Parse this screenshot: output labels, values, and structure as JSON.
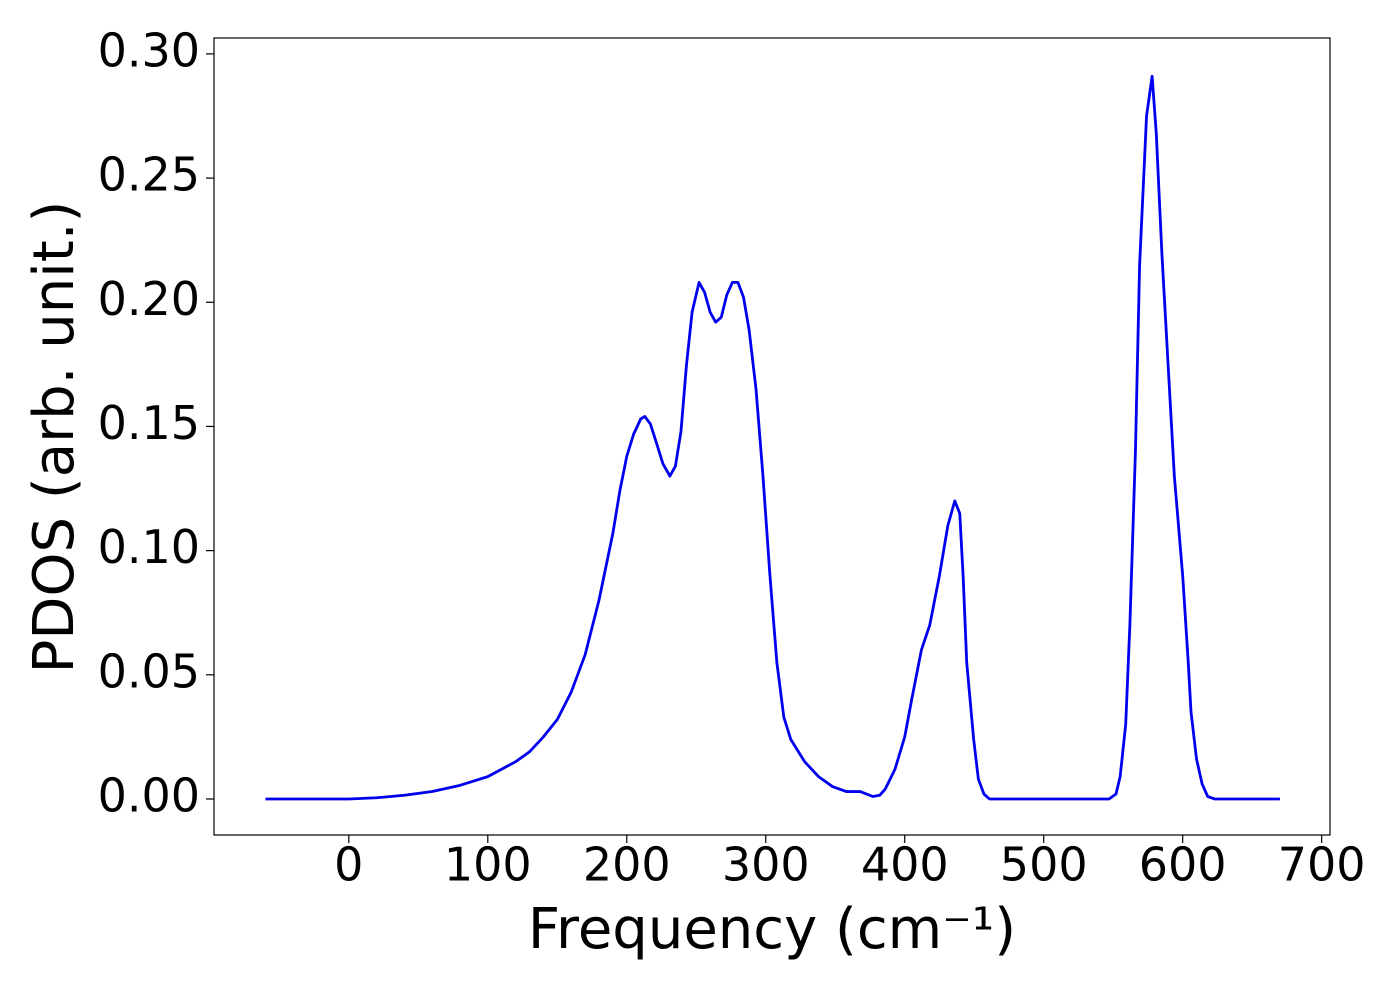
{
  "chart_data": {
    "type": "line",
    "xlabel": "Frequency (cm⁻¹)",
    "ylabel": "PDOS (arb. unit.)",
    "x": [
      -60,
      -40,
      -20,
      0,
      20,
      40,
      60,
      80,
      100,
      120,
      130,
      140,
      150,
      160,
      170,
      180,
      190,
      195,
      200,
      205,
      210,
      213,
      217,
      221,
      226,
      231,
      235,
      239,
      243,
      247,
      252,
      256,
      260,
      264,
      268,
      272,
      276,
      280,
      284,
      288,
      293,
      298,
      303,
      308,
      313,
      318,
      328,
      338,
      348,
      358,
      368,
      377,
      382,
      386,
      393,
      400,
      405,
      412,
      418,
      425,
      431,
      436,
      439.6,
      442,
      444.6,
      449.6,
      453,
      457,
      461,
      470,
      500,
      547,
      552,
      555,
      559,
      562,
      566,
      569,
      574,
      578,
      581,
      585,
      590,
      594,
      600,
      604,
      606,
      610,
      614,
      618,
      623,
      640,
      670
    ],
    "series": [
      {
        "name": "PDOS",
        "color": "#0000ee",
        "values": [
          0,
          0,
          0,
          0,
          0.0005,
          0.0015,
          0.003,
          0.0055,
          0.009,
          0.015,
          0.019,
          0.025,
          0.032,
          0.043,
          0.058,
          0.08,
          0.107,
          0.124,
          0.138,
          0.147,
          0.153,
          0.154,
          0.151,
          0.144,
          0.135,
          0.13,
          0.134,
          0.148,
          0.175,
          0.196,
          0.208,
          0.204,
          0.196,
          0.192,
          0.194,
          0.203,
          0.208,
          0.208,
          0.202,
          0.189,
          0.165,
          0.13,
          0.09,
          0.055,
          0.033,
          0.024,
          0.015,
          0.009,
          0.005,
          0.003,
          0.003,
          0.001,
          0.0015,
          0.004,
          0.012,
          0.025,
          0.04,
          0.06,
          0.07,
          0.09,
          0.11,
          0.12,
          0.115,
          0.09,
          0.055,
          0.024,
          0.008,
          0.002,
          0,
          0,
          0,
          0,
          0.002,
          0.009,
          0.03,
          0.07,
          0.14,
          0.215,
          0.275,
          0.291,
          0.268,
          0.22,
          0.17,
          0.13,
          0.09,
          0.055,
          0.035,
          0.016,
          0.006,
          0.001,
          0,
          0,
          0
        ]
      }
    ],
    "xlim": [
      -97,
      706
    ],
    "ylim": [
      -0.0145,
      0.3064
    ],
    "xticks": [
      0,
      100,
      200,
      300,
      400,
      500,
      600,
      700
    ],
    "yticks": [
      {
        "value": 0,
        "label": "0.00"
      },
      {
        "value": 0.05,
        "label": "0.05"
      },
      {
        "value": 0.1,
        "label": "0.10"
      },
      {
        "value": 0.15,
        "label": "0.15"
      },
      {
        "value": 0.2,
        "label": "0.20"
      },
      {
        "value": 0.25,
        "label": "0.25"
      },
      {
        "value": 0.3,
        "label": "0.30"
      }
    ],
    "grid": false
  }
}
